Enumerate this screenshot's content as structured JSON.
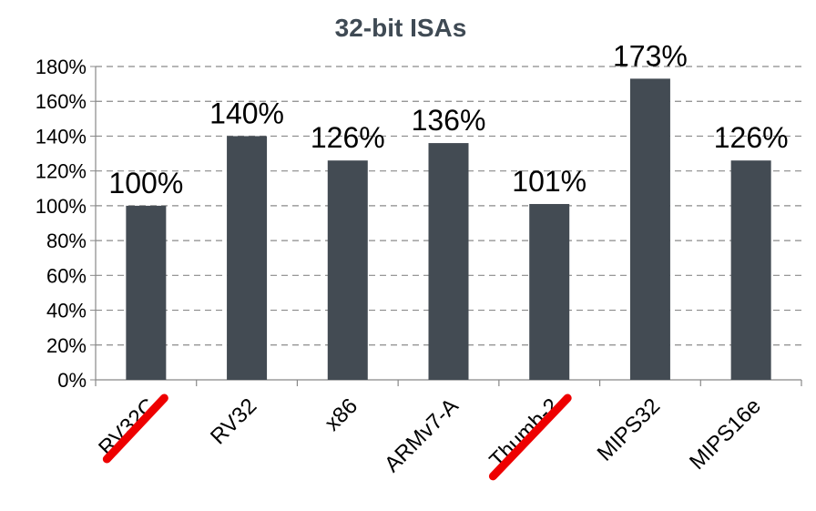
{
  "chart_data": {
    "type": "bar",
    "title": "32-bit ISAs",
    "categories": [
      "RV32C",
      "RV32",
      "x86",
      "ARMv7-A",
      "Thumb-2",
      "MIPS32",
      "MIPS16e"
    ],
    "values": [
      100,
      140,
      126,
      136,
      101,
      173,
      126
    ],
    "data_labels": [
      "100%",
      "140%",
      "126%",
      "136%",
      "101%",
      "173%",
      "126%"
    ],
    "y_tick_labels": [
      "0%",
      "20%",
      "40%",
      "60%",
      "80%",
      "100%",
      "120%",
      "140%",
      "160%",
      "180%"
    ],
    "ylim": [
      0,
      180
    ],
    "grid": "horizontal dashed",
    "bar_color": "#434b53",
    "strikethrough_categories": [
      "RV32C",
      "Thumb-2"
    ],
    "strikethrough_color": "#ee0000"
  }
}
